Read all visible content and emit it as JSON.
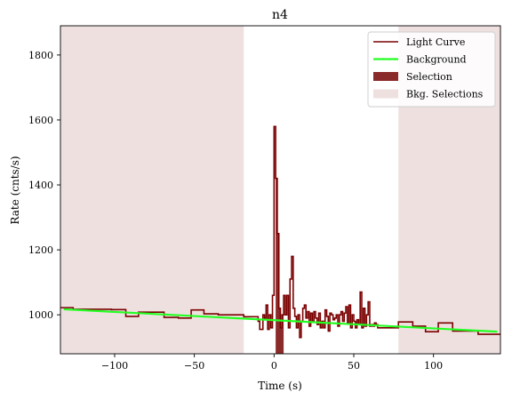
{
  "chart_data": {
    "type": "line",
    "title": "n4",
    "xlabel": "Time (s)",
    "ylabel": "Rate (cnts/s)",
    "xlim": [
      -134,
      142
    ],
    "ylim": [
      880,
      1890
    ],
    "xticks": [
      -100,
      -50,
      0,
      50,
      100
    ],
    "yticks": [
      1000,
      1200,
      1400,
      1600,
      1800
    ],
    "xtick_labels": [
      "−100",
      "−50",
      "0",
      "50",
      "100"
    ],
    "ytick_labels": [
      "1000",
      "1200",
      "1400",
      "1600",
      "1800"
    ],
    "grid": false,
    "legend_position": "top-right",
    "colors": {
      "light_curve": "#7a0000",
      "background": "#22ff22",
      "selection": "#8b2a2a",
      "bkg_selection": "#efe0e0"
    },
    "legend": [
      {
        "label": "Light Curve",
        "kind": "line",
        "color": "#7a0000"
      },
      {
        "label": "Background",
        "kind": "line",
        "color": "#22ff22"
      },
      {
        "label": "Selection",
        "kind": "patch",
        "color": "#8b2a2a"
      },
      {
        "label": "Bkg. Selections",
        "kind": "patch",
        "color": "#efe0e0"
      }
    ],
    "bkg_selections": [
      [
        -134,
        -19
      ],
      [
        78,
        142
      ]
    ],
    "selection": [
      1,
      6
    ],
    "background_line": {
      "x": [
        -132,
        140
      ],
      "y": [
        1017,
        948
      ]
    },
    "light_curve": {
      "edges": [
        -134,
        -126,
        -102,
        -93,
        -85,
        -69,
        -60,
        -52,
        -44,
        -35,
        -19,
        -10,
        -9,
        -7,
        -6,
        -5,
        -4,
        -3,
        -2,
        -1,
        0,
        1,
        2,
        3,
        4,
        5,
        6,
        7,
        8,
        9,
        10,
        11,
        12,
        13,
        14,
        15,
        16,
        17,
        18,
        19,
        20,
        21,
        22,
        23,
        24,
        25,
        26,
        27,
        28,
        29,
        30,
        31,
        32,
        33,
        34,
        35,
        36,
        37,
        38,
        39,
        40,
        41,
        42,
        43,
        44,
        45,
        46,
        47,
        48,
        49,
        50,
        51,
        52,
        53,
        54,
        55,
        56,
        57,
        58,
        59,
        60,
        61,
        62,
        63,
        64,
        65,
        70,
        78,
        87,
        95,
        103,
        112,
        119,
        128,
        142
      ],
      "rates": [
        1022,
        1017,
        1016,
        995,
        1008,
        992,
        990,
        1015,
        1003,
        1000,
        994,
        980,
        955,
        1000,
        990,
        1030,
        955,
        1000,
        960,
        1060,
        1580,
        1420,
        1250,
        1020,
        960,
        1000,
        1060,
        1000,
        1060,
        960,
        1110,
        1180,
        1020,
        995,
        960,
        1000,
        930,
        980,
        1020,
        1030,
        990,
        1010,
        965,
        1005,
        980,
        1010,
        990,
        970,
        1005,
        960,
        980,
        960,
        1015,
        995,
        950,
        1005,
        1000,
        985,
        990,
        1000,
        965,
        1000,
        1010,
        980,
        1005,
        1025,
        975,
        1030,
        960,
        1000,
        980,
        960,
        985,
        970,
        1070,
        960,
        1020,
        965,
        1000,
        1040,
        965,
        970,
        965,
        975,
        970,
        960,
        960,
        978,
        965,
        948,
        975,
        950,
        950,
        940
      ]
    }
  }
}
